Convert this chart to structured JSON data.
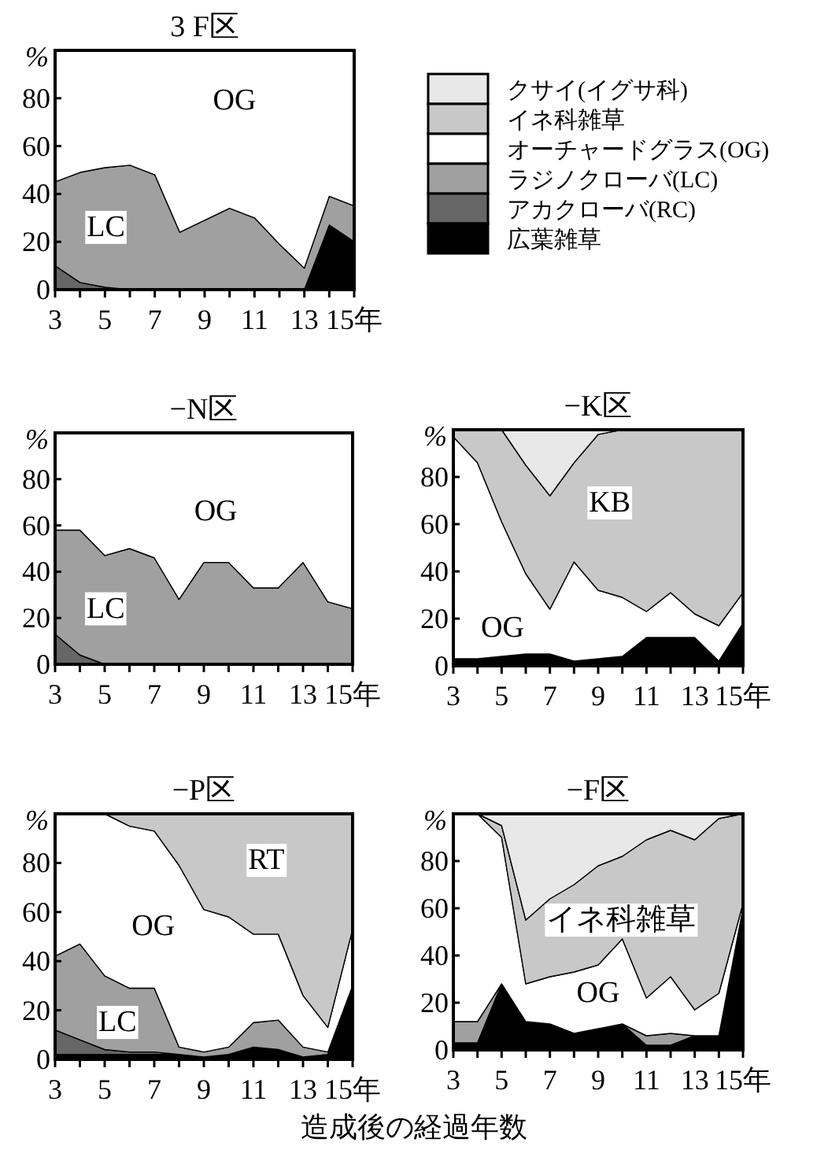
{
  "chart_data": [
    {
      "type": "area",
      "stacked": true,
      "title": "3 F区",
      "ylabel": "%",
      "x": [
        3,
        4,
        5,
        6,
        7,
        8,
        9,
        10,
        11,
        12,
        13,
        14,
        15
      ],
      "xlim": [
        3,
        15
      ],
      "ylim": [
        0,
        100
      ],
      "xticks": [
        3,
        {
          "value": 4,
          "label": null
        },
        5,
        {
          "value": 6,
          "label": null
        },
        7,
        {
          "value": 8,
          "label": null
        },
        9,
        {
          "value": 10,
          "label": null
        },
        11,
        {
          "value": 12,
          "label": null
        },
        13,
        {
          "value": 14,
          "label": null
        },
        {
          "value": 15,
          "label": "15年"
        }
      ],
      "yticks": [
        0,
        20,
        40,
        60,
        80
      ],
      "legend": "right",
      "series": [
        {
          "name": "広葉雑草",
          "color": "#000000",
          "values": [
            null,
            null,
            null,
            null,
            null,
            null,
            null,
            null,
            null,
            null,
            0,
            27,
            20
          ]
        },
        {
          "name": "アカクローバ(RC)",
          "color": "#666666",
          "values": [
            10,
            3,
            1,
            0,
            0,
            0,
            0,
            0,
            0,
            0,
            0,
            0,
            0
          ]
        },
        {
          "name": "ラジノクローバ(LC)",
          "color": "#a0a0a0",
          "values": [
            35,
            46,
            50,
            52,
            48,
            24,
            29,
            34,
            30,
            19,
            9,
            12,
            15
          ]
        },
        {
          "name": "オーチャードグラス(OG)",
          "color": "#ffffff",
          "values": [
            55,
            51,
            49,
            48,
            52,
            76,
            71,
            66,
            70,
            81,
            91,
            61,
            65
          ]
        },
        {
          "name": "イネ科雑草",
          "color": "#c8c8c8",
          "values": [
            null,
            null,
            null,
            null,
            null,
            null,
            null,
            null,
            null,
            null,
            null,
            null,
            null
          ]
        },
        {
          "name": "クサイ(イグサ科)",
          "color": "#e8e8e8",
          "values": [
            null,
            null,
            null,
            null,
            null,
            null,
            null,
            null,
            null,
            null,
            null,
            null,
            null
          ]
        }
      ],
      "annotations": [
        "OG",
        "LC"
      ]
    },
    {
      "type": "area",
      "stacked": true,
      "title": "−N区",
      "ylabel": "%",
      "x": [
        3,
        4,
        5,
        6,
        7,
        8,
        9,
        10,
        11,
        12,
        13,
        14,
        15
      ],
      "xlim": [
        3,
        15
      ],
      "ylim": [
        0,
        100
      ],
      "xticks": [
        3,
        {
          "value": 4,
          "label": null
        },
        5,
        {
          "value": 6,
          "label": null
        },
        7,
        {
          "value": 8,
          "label": null
        },
        9,
        {
          "value": 10,
          "label": null
        },
        11,
        {
          "value": 12,
          "label": null
        },
        13,
        {
          "value": 14,
          "label": null
        },
        {
          "value": 15,
          "label": "15年"
        }
      ],
      "yticks": [
        0,
        20,
        40,
        60,
        80
      ],
      "series": [
        {
          "color": "#666666",
          "values": [
            13,
            4,
            0,
            0,
            0,
            0,
            0,
            0,
            0,
            0,
            0,
            0,
            0
          ]
        },
        {
          "color": "#a0a0a0",
          "values": [
            45,
            54,
            47,
            50,
            46,
            28,
            44,
            44,
            33,
            33,
            44,
            27,
            24
          ]
        },
        {
          "color": "#ffffff",
          "values": [
            42,
            42,
            53,
            50,
            54,
            72,
            56,
            56,
            67,
            67,
            56,
            73,
            76
          ]
        }
      ],
      "annotations": [
        "OG",
        "LC"
      ]
    },
    {
      "type": "area",
      "stacked": true,
      "title": "−K区",
      "ylabel": "%",
      "x": [
        3,
        4,
        5,
        6,
        7,
        8,
        9,
        10,
        11,
        12,
        13,
        14,
        15
      ],
      "xlim": [
        3,
        15
      ],
      "ylim": [
        0,
        100
      ],
      "xticks": [
        3,
        {
          "value": 4,
          "label": null
        },
        5,
        {
          "value": 6,
          "label": null
        },
        7,
        {
          "value": 8,
          "label": null
        },
        9,
        {
          "value": 10,
          "label": null
        },
        11,
        {
          "value": 12,
          "label": null
        },
        13,
        {
          "value": 14,
          "label": null
        },
        {
          "value": 15,
          "label": "15年"
        }
      ],
      "yticks": [
        0,
        20,
        40,
        60,
        80
      ],
      "series": [
        {
          "color": "#000000",
          "values": [
            3,
            3,
            4,
            5,
            5,
            2,
            3,
            4,
            12,
            12,
            12,
            2,
            18
          ]
        },
        {
          "color": "#ffffff",
          "values": [
            94,
            83,
            57,
            34,
            19,
            42,
            29,
            25,
            11,
            19,
            10,
            15,
            13
          ]
        },
        {
          "color": "#c8c8c8",
          "values": [
            3,
            14,
            39,
            46,
            48,
            42,
            66,
            71,
            77,
            69,
            78,
            83,
            69
          ]
        },
        {
          "color": "#e8e8e8",
          "values": [
            0,
            0,
            0,
            15,
            28,
            14,
            2,
            0,
            0,
            0,
            0,
            0,
            0
          ]
        }
      ],
      "annotations": [
        "KB",
        "OG"
      ]
    },
    {
      "type": "area",
      "stacked": true,
      "title": "−P区",
      "ylabel": "%",
      "x": [
        3,
        4,
        5,
        6,
        7,
        8,
        9,
        10,
        11,
        12,
        13,
        14,
        15
      ],
      "xlim": [
        3,
        15
      ],
      "ylim": [
        0,
        100
      ],
      "xticks": [
        3,
        {
          "value": 4,
          "label": null
        },
        5,
        {
          "value": 6,
          "label": null
        },
        7,
        {
          "value": 8,
          "label": null
        },
        9,
        {
          "value": 10,
          "label": null
        },
        11,
        {
          "value": 12,
          "label": null
        },
        13,
        {
          "value": 14,
          "label": null
        },
        {
          "value": 15,
          "label": "15年"
        }
      ],
      "yticks": [
        0,
        20,
        40,
        60,
        80
      ],
      "series": [
        {
          "color": "#000000",
          "values": [
            2,
            2,
            2,
            2,
            2,
            2,
            1,
            2,
            5,
            4,
            1,
            2,
            30
          ]
        },
        {
          "color": "#666666",
          "values": [
            10,
            6,
            2,
            1,
            1,
            0,
            0,
            0,
            0,
            0,
            0,
            0,
            0
          ]
        },
        {
          "color": "#a0a0a0",
          "values": [
            30,
            39,
            30,
            26,
            26,
            3,
            2,
            3,
            10,
            12,
            4,
            1,
            0
          ]
        },
        {
          "color": "#ffffff",
          "values": [
            58,
            53,
            66,
            66,
            64,
            74,
            58,
            53,
            36,
            35,
            21,
            10,
            23
          ]
        },
        {
          "color": "#c8c8c8",
          "values": [
            0,
            0,
            0,
            5,
            7,
            21,
            39,
            42,
            49,
            49,
            74,
            87,
            47
          ]
        }
      ],
      "annotations": [
        "RT",
        "OG",
        "LC"
      ]
    },
    {
      "type": "area",
      "stacked": true,
      "title": "−F区",
      "ylabel": "%",
      "xlabel": "造成後の経過年数",
      "x": [
        3,
        4,
        5,
        6,
        7,
        8,
        9,
        10,
        11,
        12,
        13,
        14,
        15
      ],
      "xlim": [
        3,
        15
      ],
      "ylim": [
        0,
        100
      ],
      "xticks": [
        3,
        {
          "value": 4,
          "label": null
        },
        5,
        {
          "value": 6,
          "label": null
        },
        7,
        {
          "value": 8,
          "label": null
        },
        9,
        {
          "value": 10,
          "label": null
        },
        11,
        {
          "value": 12,
          "label": null
        },
        13,
        {
          "value": 14,
          "label": null
        },
        {
          "value": 15,
          "label": "15年"
        }
      ],
      "yticks": [
        0,
        20,
        40,
        60,
        80
      ],
      "series": [
        {
          "color": "#000000",
          "values": [
            3,
            3,
            28,
            12,
            11,
            7,
            9,
            11,
            2,
            2,
            6,
            6,
            60
          ]
        },
        {
          "color": "#a0a0a0",
          "values": [
            9,
            9,
            0,
            0,
            0,
            0,
            0,
            0,
            4,
            5,
            0,
            0,
            0
          ]
        },
        {
          "color": "#ffffff",
          "values": [
            88,
            88,
            62,
            16,
            20,
            26,
            27,
            36,
            16,
            24,
            11,
            18,
            2
          ]
        },
        {
          "color": "#c8c8c8",
          "values": [
            0,
            0,
            5,
            27,
            33,
            37,
            42,
            35,
            67,
            62,
            72,
            74,
            38
          ]
        },
        {
          "color": "#e8e8e8",
          "values": [
            0,
            0,
            5,
            45,
            36,
            30,
            22,
            18,
            11,
            7,
            11,
            2,
            0
          ]
        }
      ],
      "annotations": [
        "イネ科雑草",
        "OG"
      ]
    }
  ]
}
